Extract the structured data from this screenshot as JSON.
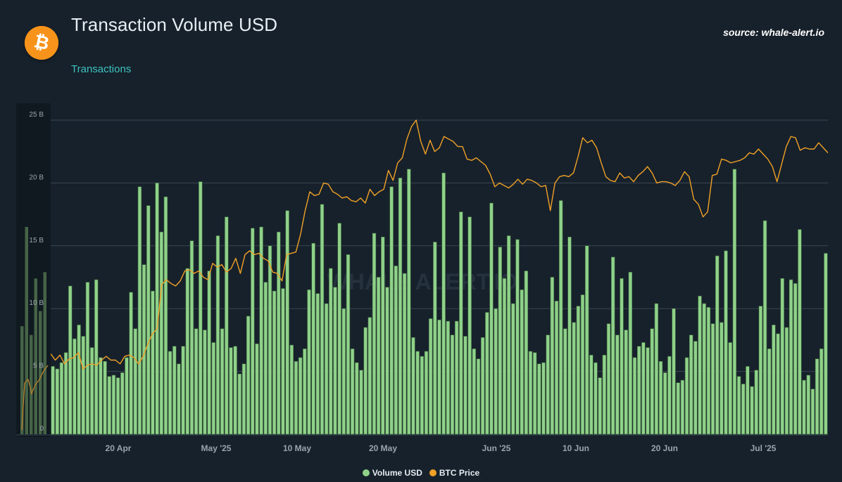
{
  "header": {
    "title": "Transaction Volume USD",
    "source": "source: whale-alert.io",
    "subtitle": "Transactions",
    "logo_icon": "bitcoin-logo-icon",
    "watermark": "WHALE ALERT.IO"
  },
  "colors": {
    "background": "#17212b",
    "bar": "#8fd18a",
    "bar_outline": "#3e6b3d",
    "line": "#f0a127",
    "grid": "#3a4753",
    "axis_text": "#9aa4ad",
    "subtitle": "#3cc2c0",
    "logo": "#f7931a"
  },
  "chart_data": {
    "type": "bar",
    "y_unit": "USD",
    "ylim": [
      0,
      25000000000
    ],
    "y_ticks": [
      "0",
      "5 B",
      "10 B",
      "15 B",
      "20 B",
      "25 B"
    ],
    "x_range": [
      "2025-04-10",
      "2025-07-15"
    ],
    "x_ticks": [
      "20 Apr",
      "May '25",
      "10 May",
      "20 May",
      "Jun '25",
      "10 Jun",
      "20 Jun",
      "Jul '25"
    ],
    "grid": true,
    "legend_placement": "bottom-center",
    "series": [
      {
        "name": "Volume USD",
        "type": "bar",
        "values_billions": [
          5.4,
          5.2,
          5.7,
          6.5,
          11.8,
          7.6,
          8.7,
          7.8,
          12.1,
          6.9,
          12.3,
          6.1,
          5.8,
          4.6,
          4.7,
          4.5,
          4.9,
          6.1,
          11.3,
          8.4,
          19.7,
          13.5,
          18.2,
          11.4,
          20.0,
          16.1,
          18.9,
          6.6,
          7.0,
          5.6,
          7.0,
          13.2,
          15.4,
          8.4,
          20.1,
          8.3,
          13.0,
          7.3,
          15.8,
          8.4,
          17.3,
          6.9,
          7.0,
          4.8,
          5.6,
          9.4,
          16.4,
          7.2,
          16.5,
          12.1,
          15.0,
          11.4,
          16.1,
          11.6,
          17.8,
          7.1,
          5.8,
          6.1,
          6.8,
          11.5,
          15.2,
          11.2,
          18.3,
          10.4,
          13.2,
          11.7,
          16.8,
          10.0,
          14.3,
          6.8,
          5.7,
          5.1,
          8.5,
          9.3,
          16.0,
          12.5,
          15.7,
          11.7,
          19.7,
          13.4,
          20.4,
          12.8,
          21.1,
          7.7,
          6.6,
          6.2,
          6.6,
          9.2,
          15.3,
          9.1,
          20.8,
          9.0,
          7.9,
          9.0,
          17.7,
          7.8,
          17.3,
          6.8,
          6.0,
          7.7,
          9.7,
          18.4,
          10.0,
          14.9,
          12.4,
          15.8,
          10.4,
          15.5,
          11.5,
          13.0,
          6.6,
          6.5,
          5.6,
          5.7,
          7.9,
          12.5,
          10.6,
          18.6,
          8.4,
          15.7,
          8.9,
          10.2,
          11.1,
          15.0,
          6.3,
          5.7,
          4.5,
          6.3,
          8.8,
          14.1,
          7.9,
          12.4,
          8.3,
          12.9,
          6.1,
          7.0,
          7.3,
          6.9,
          8.4,
          10.4,
          5.8,
          4.9,
          6.2,
          10.0,
          4.1,
          4.3,
          6.1,
          7.9,
          7.4,
          11.0,
          10.4,
          10.1,
          8.8,
          14.2,
          8.9,
          14.6,
          7.3,
          21.1,
          4.6,
          4.0,
          5.4,
          3.8,
          5.1,
          10.2,
          17.0,
          6.8,
          8.7,
          8.0,
          12.4,
          8.5,
          12.3,
          12.0,
          16.3,
          4.3,
          4.7,
          3.6,
          6.0,
          6.8,
          14.4
        ]
      },
      {
        "name": "BTC Price",
        "type": "line",
        "values_relative_to_volume_axis_billions": [
          6.4,
          5.9,
          6.3,
          5.6,
          6.0,
          6.1,
          6.5,
          5.2,
          5.5,
          5.6,
          5.5,
          5.9,
          6.2,
          5.9,
          5.9,
          5.6,
          6.2,
          6.3,
          6.1,
          5.6,
          6.2,
          7.2,
          8.0,
          8.4,
          11.9,
          12.3,
          12.0,
          11.8,
          12.2,
          13.0,
          13.1,
          12.8,
          13.0,
          12.5,
          12.3,
          13.6,
          13.3,
          13.5,
          12.9,
          13.2,
          14.0,
          12.8,
          14.3,
          14.6,
          14.3,
          14.4,
          14.0,
          13.8,
          12.9,
          12.8,
          12.2,
          14.3,
          14.4,
          14.5,
          15.9,
          17.8,
          19.3,
          19.0,
          19.1,
          20.0,
          19.9,
          19.3,
          19.1,
          18.8,
          18.9,
          18.6,
          18.5,
          18.8,
          18.4,
          19.5,
          19.0,
          19.3,
          19.5,
          21.0,
          20.2,
          21.6,
          22.0,
          23.5,
          24.5,
          25.0,
          23.3,
          22.3,
          23.4,
          22.5,
          22.8,
          23.7,
          23.5,
          23.3,
          22.9,
          22.9,
          21.9,
          21.8,
          22.0,
          21.7,
          21.4,
          20.7,
          19.7,
          20.0,
          19.8,
          19.6,
          19.9,
          20.3,
          19.9,
          20.3,
          20.2,
          20.0,
          19.7,
          19.8,
          17.8,
          20.0,
          20.5,
          20.6,
          20.5,
          20.8,
          22.1,
          23.6,
          23.2,
          23.4,
          22.8,
          21.6,
          20.5,
          20.2,
          20.1,
          20.8,
          20.4,
          20.5,
          20.1,
          20.6,
          20.9,
          21.3,
          20.8,
          20.0,
          20.1,
          20.1,
          20.0,
          19.8,
          20.2,
          20.9,
          20.5,
          18.7,
          18.3,
          17.3,
          17.7,
          20.6,
          20.7,
          21.9,
          21.8,
          21.6,
          21.7,
          21.8,
          22.0,
          22.4,
          22.3,
          22.7,
          22.3,
          21.9,
          21.3,
          20.1,
          21.5,
          22.9,
          23.7,
          23.6,
          22.6,
          22.8,
          22.7,
          22.7,
          23.2,
          22.8,
          22.4
        ]
      }
    ],
    "y_axis_label": "",
    "x_axis_label": ""
  },
  "legend": {
    "items": [
      {
        "label": "Volume USD",
        "color": "#8fd18a"
      },
      {
        "label": "BTC Price",
        "color": "#f0a127"
      }
    ]
  }
}
